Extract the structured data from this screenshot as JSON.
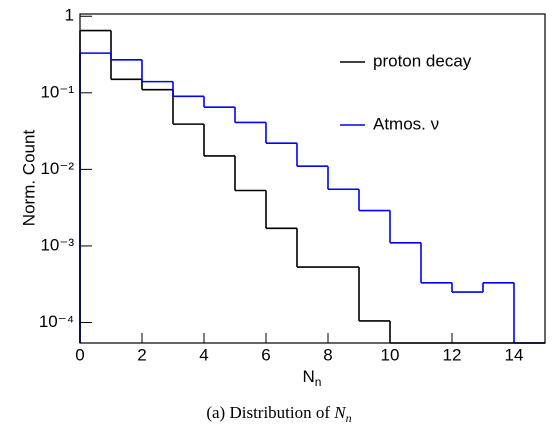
{
  "chart_data": {
    "type": "histogram",
    "ylabel": "Norm. Count",
    "xlabel": "N",
    "xlabel_sub": "n",
    "caption": "(a)  Distribution of",
    "caption_symbol": "N",
    "caption_sub": "n",
    "bins": [
      0,
      1,
      2,
      3,
      4,
      5,
      6,
      7,
      8,
      9,
      10,
      11,
      12,
      13,
      14,
      15
    ],
    "series": [
      {
        "name": "proton decay",
        "color": "#000000",
        "values": [
          0.65,
          0.15,
          0.11,
          0.039,
          0.015,
          0.0053,
          0.0017,
          0.00053,
          0.00053,
          0.000105,
          0,
          0,
          0,
          0,
          0
        ]
      },
      {
        "name": "Atmos. ν",
        "color": "#0000ff",
        "values": [
          0.33,
          0.27,
          0.14,
          0.09,
          0.065,
          0.041,
          0.022,
          0.011,
          0.0055,
          0.0029,
          0.0011,
          0.00033,
          0.00025,
          0.00033,
          0
        ]
      }
    ],
    "xlim": [
      0,
      15
    ],
    "xticks": [
      0,
      2,
      4,
      6,
      8,
      10,
      12,
      14
    ],
    "ylim": [
      5.4e-05,
      1.07
    ],
    "log_y": true,
    "yticks": [
      {
        "value": 0.0001,
        "label": "10⁻⁴"
      },
      {
        "value": 0.001,
        "label": "10⁻³"
      },
      {
        "value": 0.01,
        "label": "10⁻²"
      },
      {
        "value": 0.1,
        "label": "10⁻¹"
      },
      1
    ],
    "legend": "upper right"
  }
}
